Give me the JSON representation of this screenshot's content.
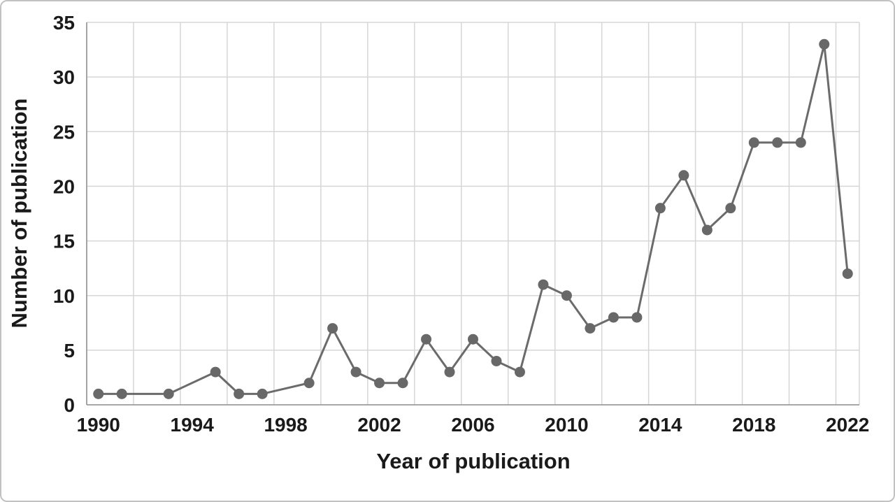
{
  "figure": {
    "background": "#ffffff",
    "border_color": "#c2c2c2"
  },
  "chart_data": {
    "type": "line",
    "title": "",
    "xlabel": "Year of publication",
    "ylabel": "Number of publication",
    "xlim": [
      1990,
      2022
    ],
    "ylim": [
      0,
      35
    ],
    "grid": true,
    "legend": "none",
    "x_tick_labels": [
      "1990",
      "1994",
      "1998",
      "2002",
      "2006",
      "2010",
      "2014",
      "2018",
      "2022"
    ],
    "y_ticks": [
      0,
      5,
      10,
      15,
      20,
      25,
      30,
      35
    ],
    "series": [
      {
        "name": "Number of publication",
        "x": [
          1990,
          1991,
          1993,
          1995,
          1996,
          1997,
          1999,
          2000,
          2001,
          2002,
          2003,
          2004,
          2005,
          2006,
          2007,
          2008,
          2009,
          2010,
          2011,
          2012,
          2013,
          2014,
          2015,
          2016,
          2017,
          2018,
          2019,
          2020,
          2021,
          2022
        ],
        "values": [
          1,
          1,
          1,
          3,
          1,
          1,
          2,
          7,
          3,
          2,
          2,
          6,
          3,
          6,
          4,
          3,
          11,
          10,
          7,
          8,
          8,
          18,
          21,
          16,
          18,
          24,
          24,
          24,
          33,
          12
        ]
      }
    ],
    "colors": {
      "line": "#6b6b6b",
      "marker": "#686868",
      "gridline": "#d6d6d6",
      "axis": "#9b9b9b",
      "text": "#1a1a1a"
    }
  }
}
